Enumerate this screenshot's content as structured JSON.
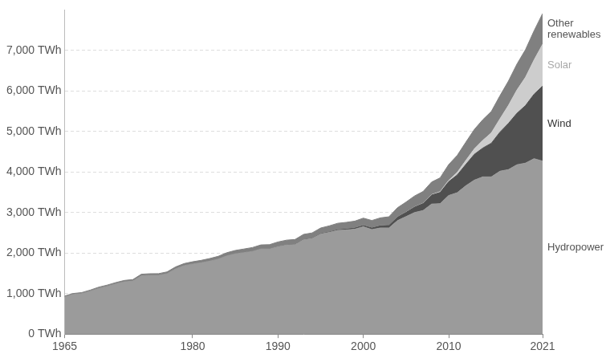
{
  "chart_data": {
    "type": "area",
    "stacked": true,
    "grid": true,
    "x": [
      1965,
      1966,
      1967,
      1968,
      1969,
      1970,
      1971,
      1972,
      1973,
      1974,
      1975,
      1976,
      1977,
      1978,
      1979,
      1980,
      1981,
      1982,
      1983,
      1984,
      1985,
      1986,
      1987,
      1988,
      1989,
      1990,
      1991,
      1992,
      1993,
      1994,
      1995,
      1996,
      1997,
      1998,
      1999,
      2000,
      2001,
      2002,
      2003,
      2004,
      2005,
      2006,
      2007,
      2008,
      2009,
      2010,
      2011,
      2012,
      2013,
      2014,
      2015,
      2016,
      2017,
      2018,
      2019,
      2020,
      2021
    ],
    "xlim": [
      1965,
      2021
    ],
    "xticks": [
      1965,
      1980,
      1990,
      2000,
      2010,
      2021
    ],
    "ylim": [
      0,
      8000
    ],
    "yticks": [
      {
        "value": 0,
        "label": "0 TWh"
      },
      {
        "value": 1000,
        "label": "1,000 TWh"
      },
      {
        "value": 2000,
        "label": "2,000 TWh"
      },
      {
        "value": 3000,
        "label": "3,000 TWh"
      },
      {
        "value": 4000,
        "label": "4,000 TWh"
      },
      {
        "value": 5000,
        "label": "5,000 TWh"
      },
      {
        "value": 6000,
        "label": "6,000 TWh"
      },
      {
        "value": 7000,
        "label": "7,000 TWh"
      }
    ],
    "series": [
      {
        "name": "Hydropower",
        "color": "#9b9b9b",
        "values": [
          920,
          980,
          1000,
          1060,
          1130,
          1180,
          1240,
          1290,
          1310,
          1440,
          1450,
          1450,
          1490,
          1610,
          1690,
          1730,
          1760,
          1800,
          1850,
          1930,
          1980,
          2010,
          2040,
          2100,
          2100,
          2160,
          2200,
          2210,
          2330,
          2360,
          2470,
          2510,
          2560,
          2570,
          2590,
          2650,
          2580,
          2620,
          2620,
          2800,
          2900,
          3000,
          3050,
          3210,
          3220,
          3420,
          3490,
          3660,
          3800,
          3880,
          3880,
          4020,
          4060,
          4180,
          4220,
          4330,
          4270
        ]
      },
      {
        "name": "Wind",
        "color": "#505050",
        "values": [
          0,
          0,
          0,
          0,
          0,
          0,
          0,
          0,
          0,
          0,
          0,
          0,
          0,
          0,
          0,
          0,
          0,
          0,
          0,
          0,
          0,
          0,
          1,
          1,
          2,
          4,
          4,
          5,
          6,
          7,
          8,
          11,
          15,
          22,
          27,
          31,
          38,
          52,
          63,
          85,
          104,
          133,
          171,
          221,
          277,
          342,
          437,
          524,
          635,
          712,
          831,
          962,
          1140,
          1270,
          1420,
          1590,
          1850
        ]
      },
      {
        "name": "Solar",
        "color": "#cdcdcd",
        "values": [
          0,
          0,
          0,
          0,
          0,
          0,
          0,
          0,
          0,
          0,
          0,
          0,
          0,
          0,
          0,
          0,
          0,
          0,
          0,
          0,
          0,
          0,
          0,
          0,
          0,
          0,
          0,
          0,
          0,
          0,
          0,
          0,
          0,
          1,
          1,
          1,
          1,
          2,
          2,
          3,
          4,
          6,
          8,
          12,
          20,
          32,
          63,
          99,
          134,
          190,
          256,
          329,
          444,
          575,
          700,
          845,
          1030
        ]
      },
      {
        "name": "Other renewables",
        "color": "#808080",
        "values": [
          20,
          22,
          24,
          26,
          28,
          30,
          32,
          34,
          36,
          38,
          40,
          42,
          45,
          48,
          50,
          55,
          60,
          65,
          70,
          78,
          85,
          90,
          95,
          100,
          105,
          110,
          115,
          120,
          125,
          130,
          140,
          150,
          160,
          165,
          170,
          180,
          185,
          195,
          210,
          230,
          250,
          270,
          290,
          310,
          340,
          390,
          420,
          450,
          480,
          510,
          530,
          570,
          600,
          640,
          680,
          720,
          760
        ]
      }
    ]
  }
}
